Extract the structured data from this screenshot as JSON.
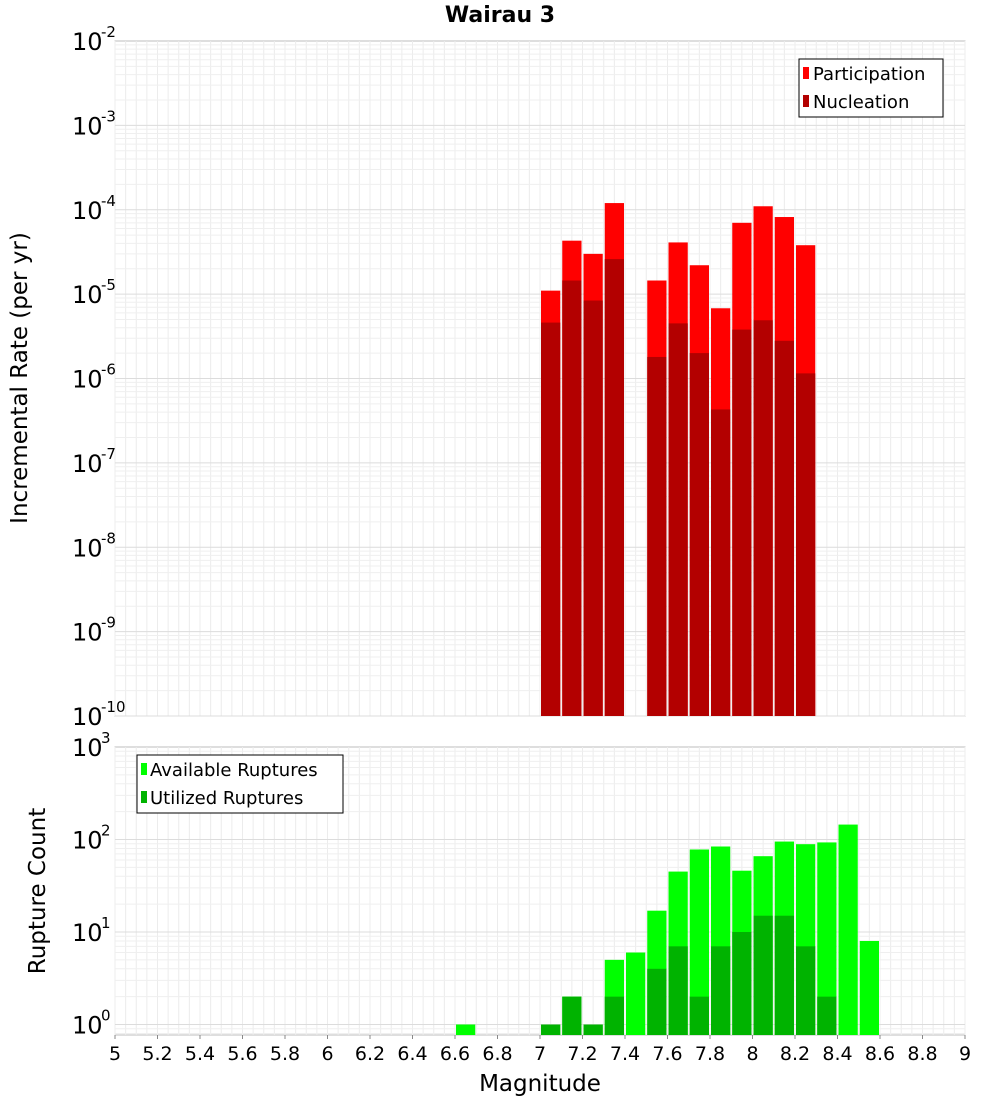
{
  "chart_data": [
    {
      "type": "bar",
      "title": "Wairau 3",
      "xlabel": "",
      "ylabel": "Incremental Rate (per yr)",
      "yscale": "log",
      "ylim": [
        1e-10,
        0.01
      ],
      "xlim": [
        5,
        9
      ],
      "bar_width": 0.1,
      "legend_position": "top-right",
      "x": [
        7.05,
        7.15,
        7.25,
        7.35,
        7.55,
        7.65,
        7.75,
        7.85,
        7.95,
        8.05,
        8.15,
        8.25
      ],
      "series": [
        {
          "name": "Participation",
          "color": "#ff0000",
          "values": [
            1.1e-05,
            4.3e-05,
            3e-05,
            0.00012,
            1.45e-05,
            4.1e-05,
            2.2e-05,
            6.8e-06,
            7e-05,
            0.00011,
            8.2e-05,
            3.8e-05
          ]
        },
        {
          "name": "Nucleation",
          "color": "#b30000",
          "values": [
            4.6e-06,
            1.45e-05,
            8.4e-06,
            2.6e-05,
            1.8e-06,
            4.5e-06,
            2e-06,
            4.3e-07,
            3.8e-06,
            4.9e-06,
            2.8e-06,
            1.15e-06
          ]
        }
      ]
    },
    {
      "type": "bar",
      "title": "",
      "xlabel": "Magnitude",
      "ylabel": "Rupture Count",
      "yscale": "log",
      "ylim": [
        0.77,
        1000
      ],
      "xlim": [
        5,
        9
      ],
      "bar_width": 0.1,
      "legend_position": "top-left",
      "x": [
        6.65,
        7.05,
        7.15,
        7.25,
        7.35,
        7.45,
        7.55,
        7.65,
        7.75,
        7.85,
        7.95,
        8.05,
        8.15,
        8.25,
        8.35,
        8.45,
        8.55
      ],
      "series": [
        {
          "name": "Available Ruptures",
          "color": "#00ff00",
          "values": [
            1,
            1,
            2,
            1,
            5,
            6,
            17,
            45,
            78,
            84,
            46,
            66,
            95,
            89,
            93,
            145,
            8
          ]
        },
        {
          "name": "Utilized Ruptures",
          "color": "#00b300",
          "values": [
            0,
            1,
            2,
            1,
            2,
            0,
            4,
            7,
            2,
            7,
            10,
            15,
            15,
            7,
            2,
            0,
            0
          ]
        }
      ],
      "xticks": [
        "5",
        "5.2",
        "5.4",
        "5.6",
        "5.8",
        "6",
        "6.2",
        "6.4",
        "6.6",
        "6.8",
        "7",
        "7.2",
        "7.4",
        "7.6",
        "7.8",
        "8",
        "8.2",
        "8.4",
        "8.6",
        "8.8",
        "9"
      ]
    }
  ],
  "top_yticks": {
    "base": "10",
    "exponents": [
      "-10",
      "-9",
      "-8",
      "-7",
      "-6",
      "-5",
      "-4",
      "-3",
      "-2"
    ]
  },
  "bottom_yticks": {
    "base": "10",
    "exponents": [
      "0",
      "1",
      "2",
      "3"
    ]
  }
}
